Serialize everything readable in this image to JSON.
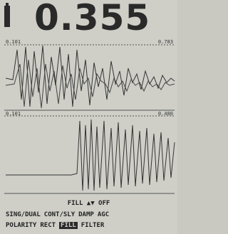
{
  "reading": "0.355",
  "top_panel": {
    "left_label": "0.101",
    "right_label": "0.783"
  },
  "bottom_panel": {
    "left_label": "0.101",
    "right_label": "0.480"
  },
  "status": "FILL ▲▼ OFF",
  "menu": [
    [
      "SING/DUAL",
      "CONT/SLY",
      "DAMP",
      "AGC"
    ],
    [
      "POLARITY",
      "RECT",
      "FILL",
      "FILTER"
    ]
  ]
}
